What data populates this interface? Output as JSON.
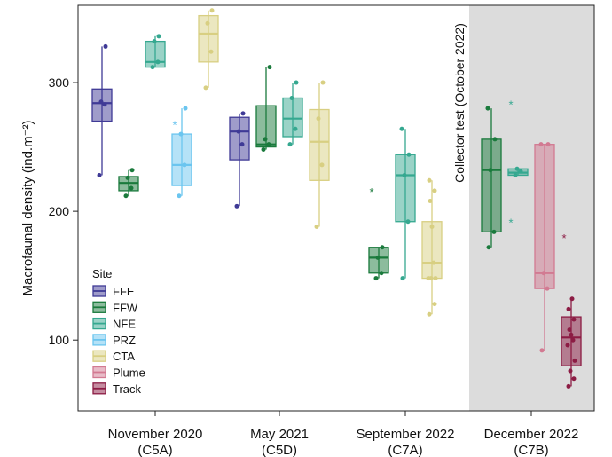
{
  "chart_data": {
    "type": "box",
    "ylabel": "Macrofaunal density (ind.m⁻²)",
    "ylim": [
      45,
      360
    ],
    "yticks": [
      100,
      200,
      300
    ],
    "grid": false,
    "legend": {
      "title": "Site",
      "position": "bottom-left"
    },
    "groups": [
      {
        "label_line1": "November 2020",
        "label_line2": "(C5A)",
        "boxes": [
          {
            "site": "FFE",
            "q1": 270,
            "median": 284,
            "q3": 295,
            "whisker_low": 228,
            "whisker_high": 328,
            "points": [
              228,
              283,
              285,
              328
            ],
            "outliers": []
          },
          {
            "site": "FFW",
            "q1": 216,
            "median": 222,
            "q3": 227,
            "whisker_low": 212,
            "whisker_high": 232,
            "points": [
              212,
              218,
              226,
              232
            ],
            "outliers": []
          },
          {
            "site": "NFE",
            "q1": 312,
            "median": 316,
            "q3": 332,
            "whisker_low": 312,
            "whisker_high": 336,
            "points": [
              312,
              316,
              332,
              336
            ],
            "outliers": []
          },
          {
            "site": "PRZ",
            "q1": 220,
            "median": 236,
            "q3": 260,
            "whisker_low": 212,
            "whisker_high": 280,
            "points": [
              212,
              236,
              260,
              280
            ],
            "outliers": [
              268
            ]
          },
          {
            "site": "CTA",
            "q1": 316,
            "median": 338,
            "q3": 352,
            "whisker_low": 296,
            "whisker_high": 356,
            "points": [
              296,
              324,
              346,
              356
            ],
            "outliers": []
          }
        ]
      },
      {
        "label_line1": "May 2021",
        "label_line2": "(C5D)",
        "boxes": [
          {
            "site": "FFE",
            "q1": 240,
            "median": 262,
            "q3": 273,
            "whisker_low": 204,
            "whisker_high": 276,
            "points": [
              204,
              252,
              262,
              276
            ],
            "outliers": []
          },
          {
            "site": "FFW",
            "q1": 250,
            "median": 252,
            "q3": 282,
            "whisker_low": 248,
            "whisker_high": 312,
            "points": [
              248,
              252,
              256,
              312
            ],
            "outliers": []
          },
          {
            "site": "NFE",
            "q1": 258,
            "median": 272,
            "q3": 288,
            "whisker_low": 252,
            "whisker_high": 300,
            "points": [
              252,
              264,
              288,
              300
            ],
            "outliers": []
          },
          {
            "site": "CTA",
            "q1": 224,
            "median": 254,
            "q3": 279,
            "whisker_low": 188,
            "whisker_high": 300,
            "points": [
              188,
              236,
              272,
              300
            ],
            "outliers": []
          }
        ]
      },
      {
        "label_line1": "September 2022",
        "label_line2": "(C7A)",
        "boxes": [
          {
            "site": "FFW",
            "q1": 152,
            "median": 164,
            "q3": 172,
            "whisker_low": 148,
            "whisker_high": 172,
            "points": [
              148,
              152,
              164,
              172
            ],
            "outliers": [
              216
            ]
          },
          {
            "site": "NFE",
            "q1": 192,
            "median": 228,
            "q3": 244,
            "whisker_low": 148,
            "whisker_high": 264,
            "points": [
              148,
              192,
              228,
              244,
              264
            ],
            "outliers": []
          },
          {
            "site": "CTA",
            "q1": 148,
            "median": 160,
            "q3": 192,
            "whisker_low": 120,
            "whisker_high": 224,
            "points": [
              120,
              128,
              148,
              148,
              148,
              160,
              188,
              208,
              216,
              224
            ],
            "outliers": []
          }
        ]
      },
      {
        "label_line1": "December 2022",
        "label_line2": "(C7B)",
        "boxes": [
          {
            "site": "FFW",
            "q1": 184,
            "median": 232,
            "q3": 256,
            "whisker_low": 172,
            "whisker_high": 280,
            "points": [
              172,
              184,
              232,
              256,
              280
            ],
            "outliers": []
          },
          {
            "site": "NFE",
            "q1": 228,
            "median": 230,
            "q3": 233,
            "whisker_low": 228,
            "whisker_high": 233,
            "points": [
              228,
              231,
              233
            ],
            "outliers": [
              284,
              192
            ]
          },
          {
            "site": "Plume",
            "q1": 140,
            "median": 152,
            "q3": 252,
            "whisker_low": 92,
            "whisker_high": 252,
            "points": [
              92,
              140,
              152,
              252,
              252
            ],
            "outliers": []
          },
          {
            "site": "Track",
            "q1": 80,
            "median": 102,
            "q3": 118,
            "whisker_low": 64,
            "whisker_high": 132,
            "points": [
              64,
              70,
              76,
              84,
              96,
              100,
              104,
              108,
              116,
              124,
              132
            ],
            "outliers": [
              180
            ]
          }
        ]
      }
    ],
    "shaded_region": {
      "from_group": 3,
      "label": "Collector test (October 2022)"
    },
    "sites": [
      {
        "name": "FFE",
        "color": "#3f3a96"
      },
      {
        "name": "FFW",
        "color": "#1a7a3c"
      },
      {
        "name": "NFE",
        "color": "#35a890"
      },
      {
        "name": "PRZ",
        "color": "#6bc5ef"
      },
      {
        "name": "CTA",
        "color": "#d8cf82"
      },
      {
        "name": "Plume",
        "color": "#d27a92"
      },
      {
        "name": "Track",
        "color": "#8c1c44"
      }
    ]
  }
}
